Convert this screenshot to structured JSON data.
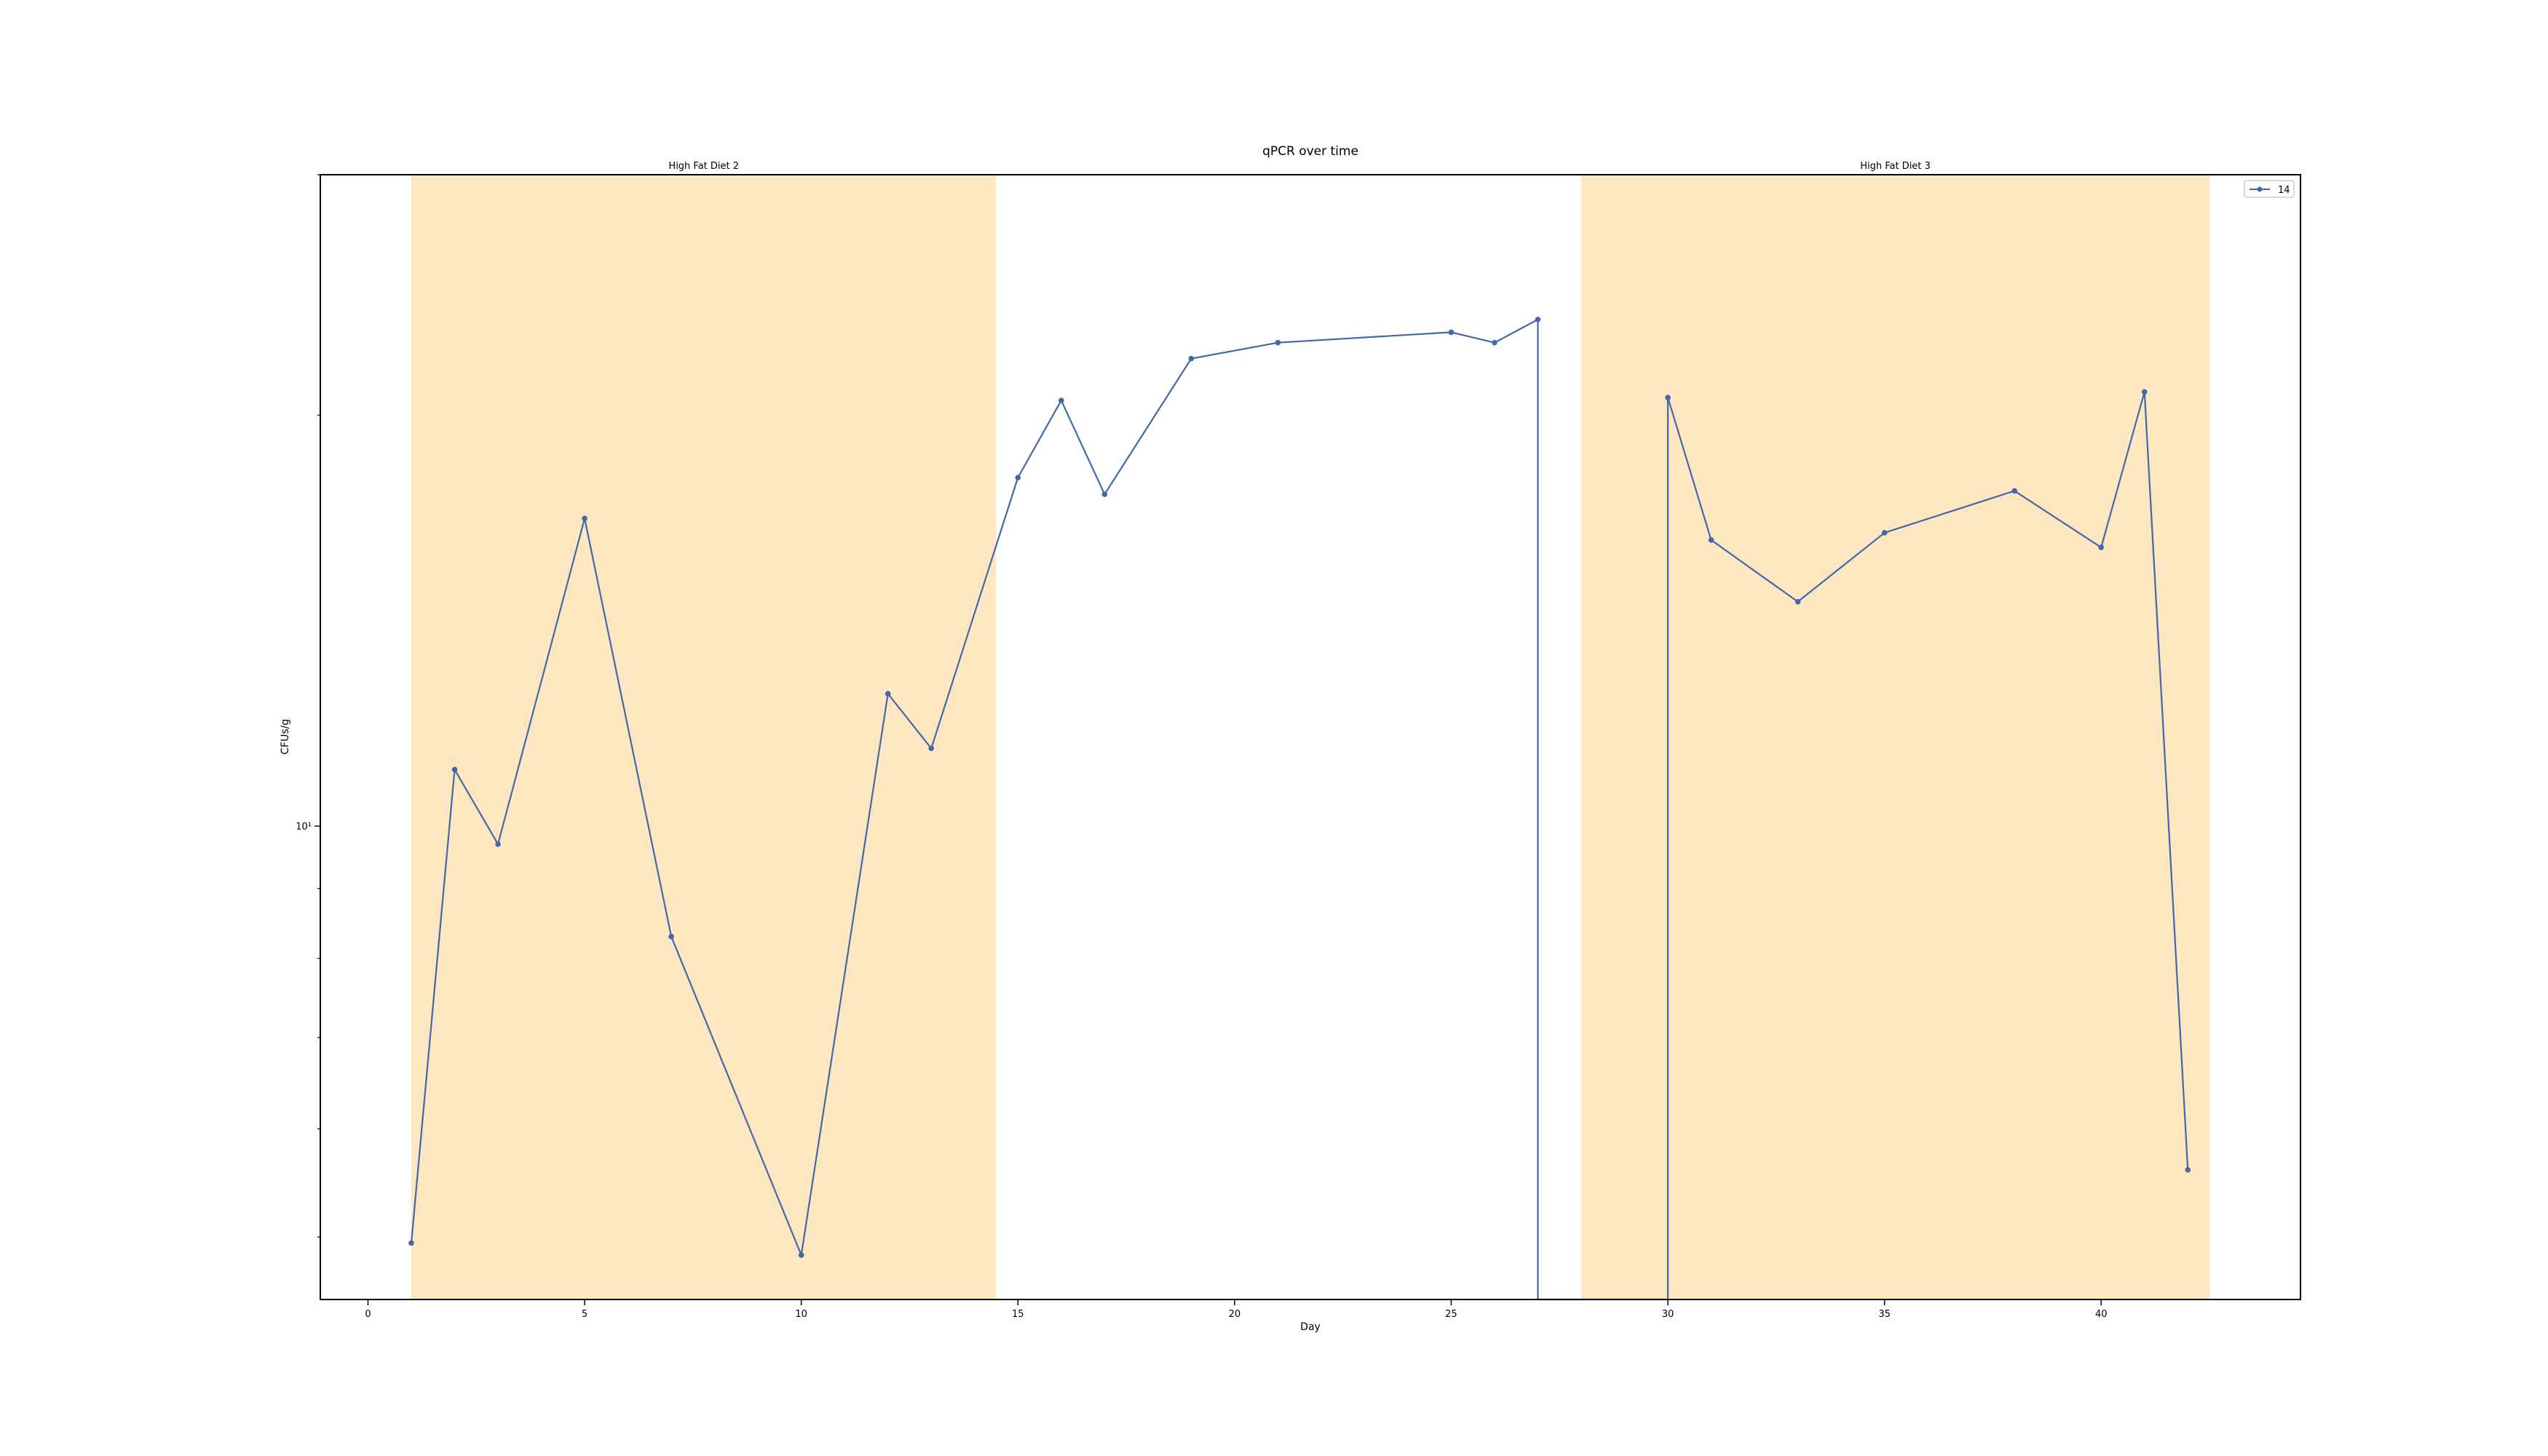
{
  "chart_data": {
    "type": "line",
    "title": "qPCR over time",
    "xlabel": "Day",
    "ylabel": "CFUs/g",
    "yscale": "log",
    "xlim": [
      -1.1,
      44.6
    ],
    "ylim": [
      4.5,
      30
    ],
    "xticks": [
      0,
      5,
      10,
      15,
      20,
      25,
      30,
      35,
      40
    ],
    "yticks": [
      {
        "value": 10,
        "label": "10¹"
      }
    ],
    "yticks_minor": [
      5,
      6,
      7,
      8,
      9,
      20,
      30
    ],
    "grid": false,
    "legend": "top-right",
    "background_color": "#ffffff",
    "shaded_regions": [
      {
        "label": "High Fat Diet 2",
        "x_start": 1,
        "x_end": 14.5,
        "color": "#fde6c0"
      },
      {
        "label": "High Fat Diet 3",
        "x_start": 28,
        "x_end": 42.5,
        "color": "#fde6c0"
      }
    ],
    "series": [
      {
        "name": "14",
        "color": "#4169aa",
        "marker": "dot",
        "x": [
          1,
          2,
          3,
          5,
          7,
          10,
          12,
          13,
          15,
          16,
          17,
          19,
          21,
          25,
          26,
          27,
          27,
          30,
          30,
          31,
          33,
          35,
          38,
          40,
          41,
          42
        ],
        "y": [
          4.95,
          11.0,
          9.7,
          16.8,
          8.3,
          4.85,
          12.5,
          11.4,
          18.0,
          20.5,
          17.5,
          22.0,
          22.6,
          23.0,
          22.6,
          23.5,
          4.5,
          4.5,
          20.6,
          16.2,
          14.6,
          16.4,
          17.6,
          16.0,
          20.8,
          5.6
        ]
      }
    ]
  }
}
